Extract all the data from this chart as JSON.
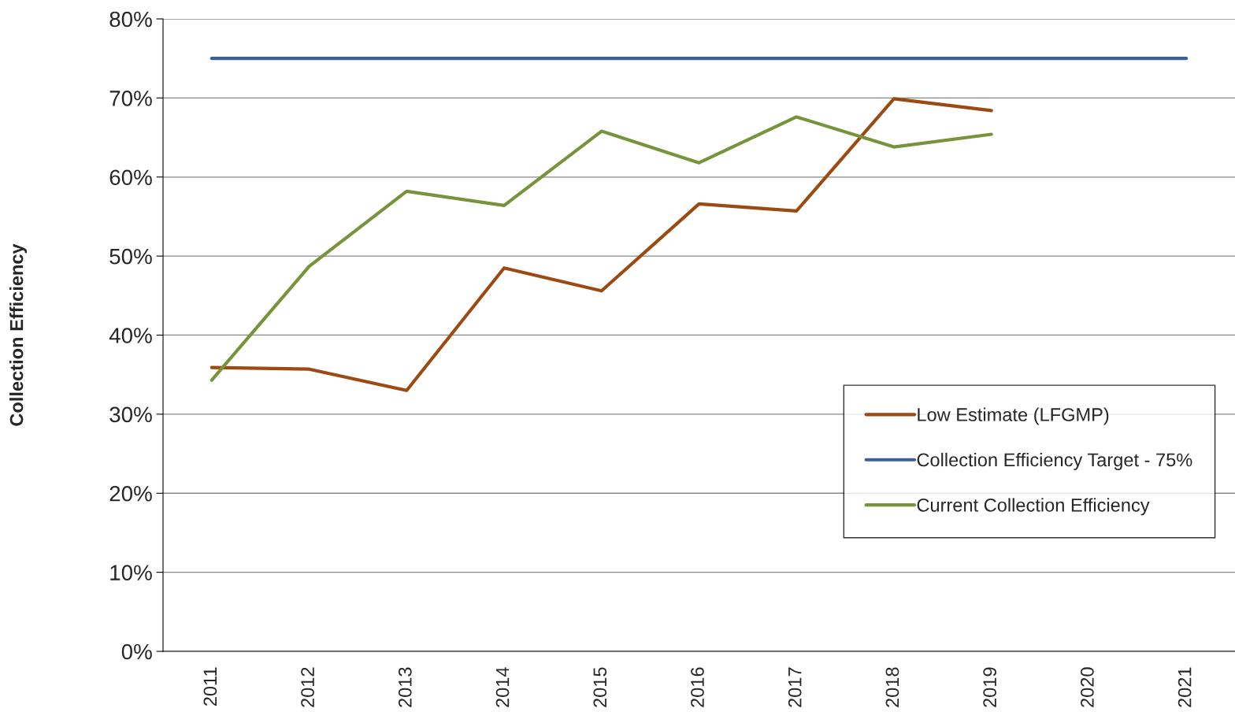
{
  "chart_data": {
    "type": "line",
    "ylabel": "Collection Efficiency",
    "categories": [
      "2011",
      "2012",
      "2013",
      "2014",
      "2015",
      "2016",
      "2017",
      "2018",
      "2019",
      "2020",
      "2021"
    ],
    "series": [
      {
        "name": "Low Estimate (LFGMP)",
        "color": "#9c4a11",
        "values": [
          35.9,
          35.7,
          33.0,
          48.5,
          45.6,
          56.6,
          55.7,
          69.9,
          68.4,
          null,
          null
        ]
      },
      {
        "name": "Collection Efficiency Target - 75%",
        "color": "#3a5f9a",
        "values": [
          75,
          75,
          75,
          75,
          75,
          75,
          75,
          75,
          75,
          75,
          75
        ]
      },
      {
        "name": "Current Collection Efficiency",
        "color": "#77933c",
        "values": [
          34.3,
          48.7,
          58.2,
          56.4,
          65.8,
          61.8,
          67.6,
          63.8,
          65.4,
          null,
          null
        ]
      }
    ],
    "ylim": [
      0,
      80
    ],
    "yticks": [
      {
        "value": 0,
        "label": "0%"
      },
      {
        "value": 10,
        "label": "10%"
      },
      {
        "value": 20,
        "label": "20%"
      },
      {
        "value": 30,
        "label": "30%"
      },
      {
        "value": 40,
        "label": "40%"
      },
      {
        "value": 50,
        "label": "50%"
      },
      {
        "value": 60,
        "label": "60%"
      },
      {
        "value": 70,
        "label": "70%"
      },
      {
        "value": 80,
        "label": "80%"
      }
    ],
    "grid": "y",
    "legend": "bottom right",
    "marker": "none",
    "line_style": "solid"
  }
}
